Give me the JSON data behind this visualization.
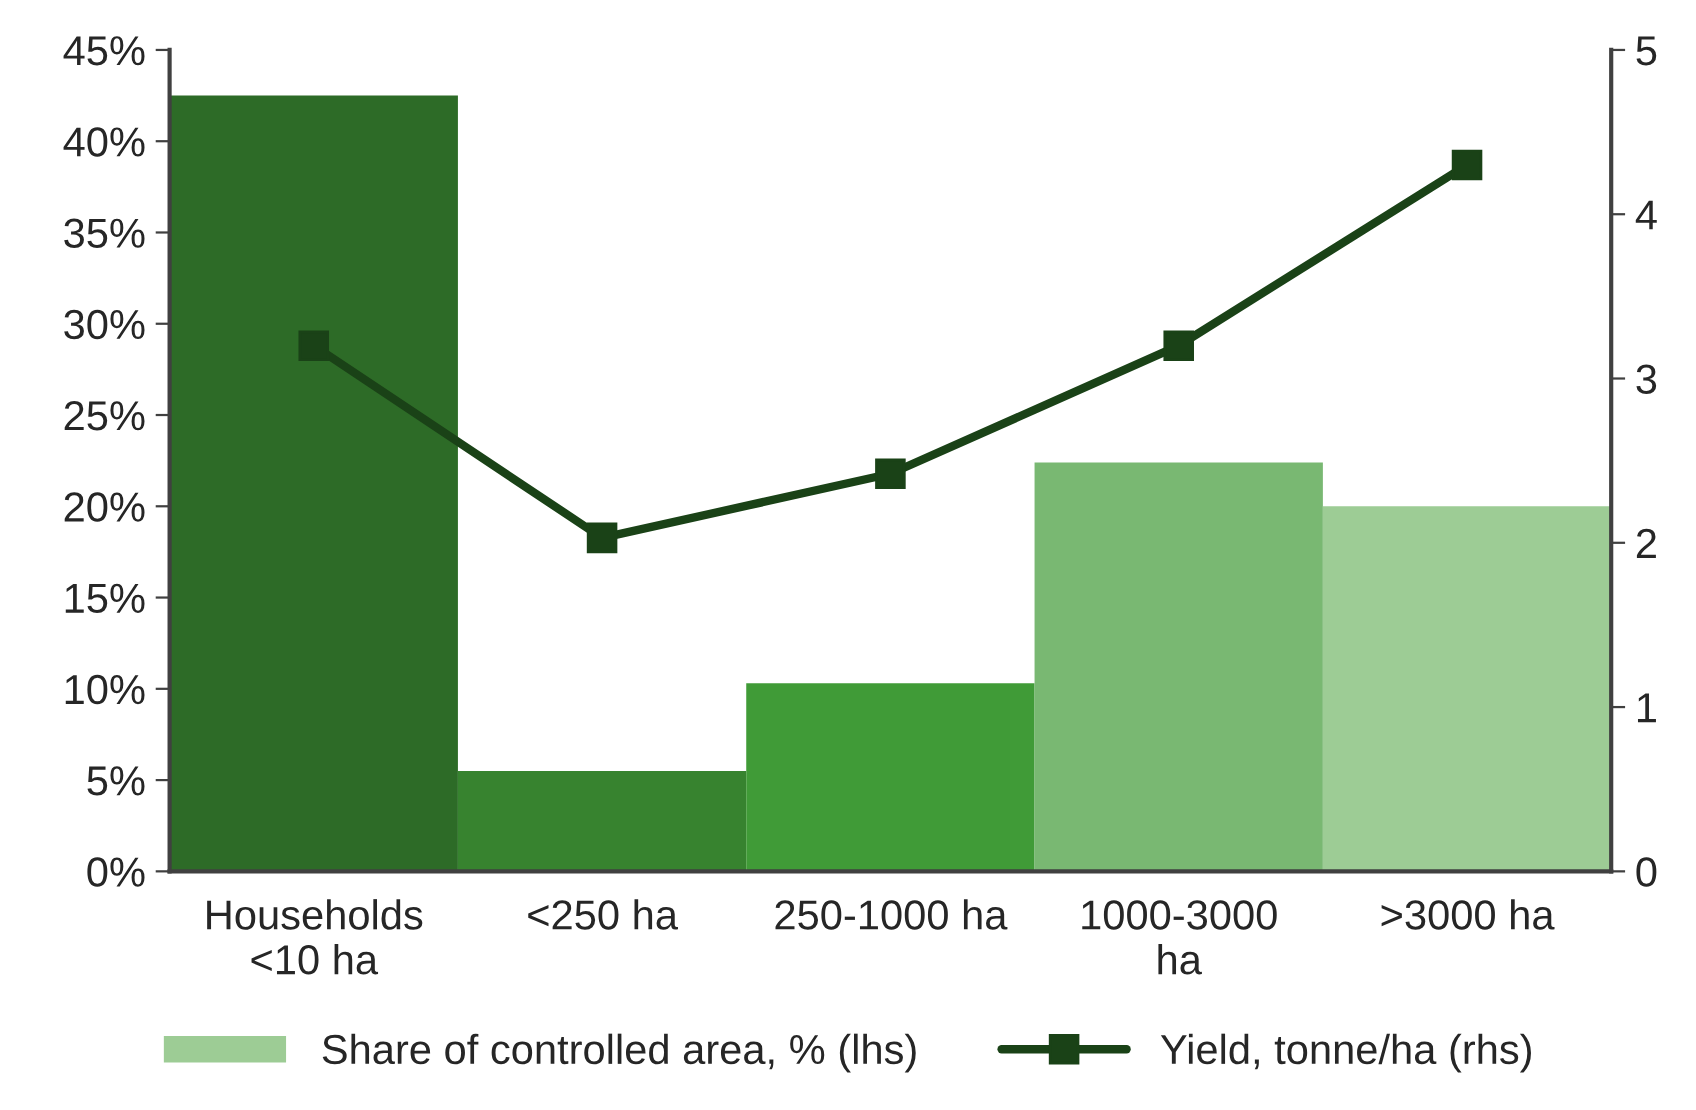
{
  "chart_data": {
    "type": "bar",
    "categories": [
      "Households\n<10 ha",
      "<250 ha",
      "250-1000 ha",
      "1000-3000\nha",
      ">3000 ha"
    ],
    "series": [
      {
        "name": "Share of controlled area, % (lhs)",
        "color": "#9dcc95",
        "colors": [
          "#2d6b27",
          "#37832f",
          "#409b37",
          "#79b872",
          "#9dcc95"
        ],
        "values": [
          42.5,
          5.5,
          10.3,
          22.4,
          20.0
        ]
      },
      {
        "type": "line",
        "name": "Yield, tonne/ha (rhs)",
        "color": "#1a4217",
        "axis": "y2",
        "marker": "square",
        "line_style": "solid",
        "values": [
          3.2,
          2.03,
          2.42,
          3.2,
          4.3
        ]
      }
    ],
    "ylim": [
      0,
      45
    ],
    "yticks": [
      {
        "value": 0,
        "label": "0%"
      },
      {
        "value": 5,
        "label": "5%"
      },
      {
        "value": 10,
        "label": "10%"
      },
      {
        "value": 15,
        "label": "15%"
      },
      {
        "value": 20,
        "label": "20%"
      },
      {
        "value": 25,
        "label": "25%"
      },
      {
        "value": 30,
        "label": "30%"
      },
      {
        "value": 35,
        "label": "35%"
      },
      {
        "value": 40,
        "label": "40%"
      },
      {
        "value": 45,
        "label": "45%"
      }
    ],
    "y2lim": [
      0,
      5
    ],
    "y2ticks": [
      0,
      1,
      2,
      3,
      4,
      5
    ],
    "grid": false,
    "legend": "bottom"
  }
}
